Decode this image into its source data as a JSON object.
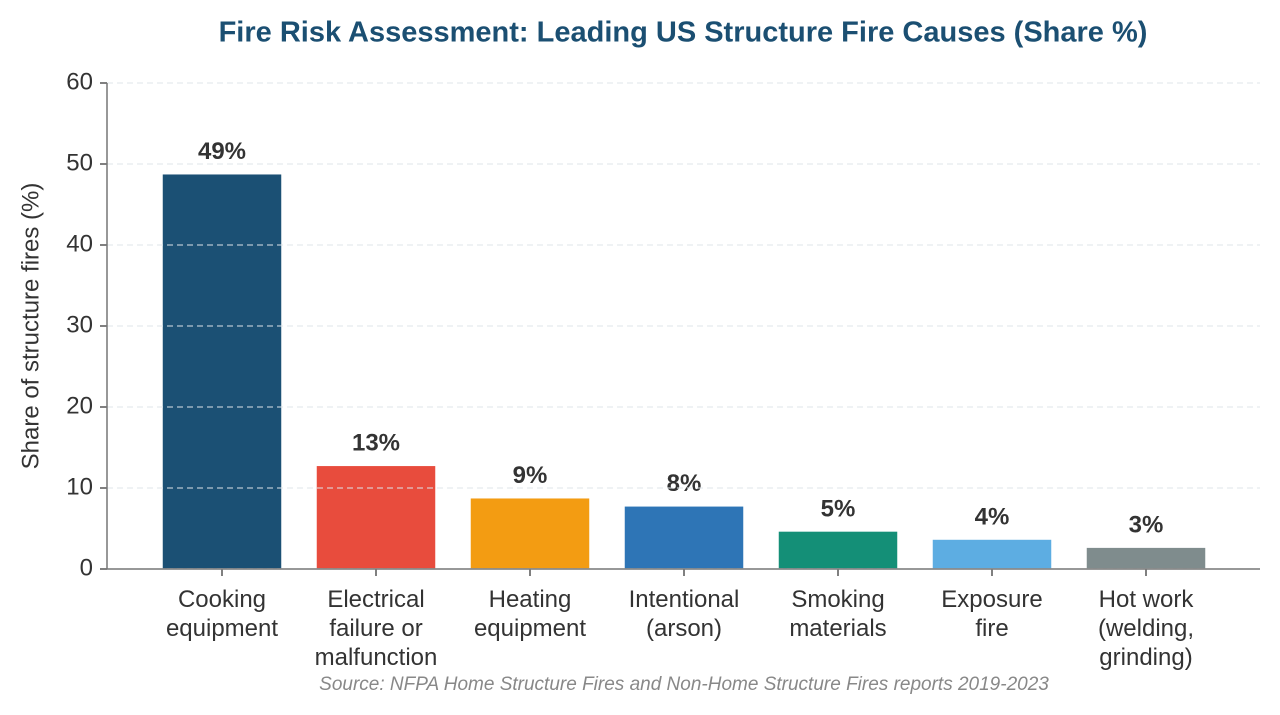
{
  "chart_data": {
    "type": "bar",
    "title": "Fire Risk Assessment: Leading US Structure Fire Causes (Share %)",
    "ylabel": "Share of structure fires (%)",
    "source": "Source: NFPA Home Structure Fires and Non-Home Structure Fires reports 2019-2023",
    "categories": [
      "Cooking\nequipment",
      "Electrical\nfailure or\nmalfunction",
      "Heating\nequipment",
      "Intentional\n(arson)",
      "Smoking\nmaterials",
      "Exposure\nfire",
      "Hot work\n(welding,\ngrinding)"
    ],
    "values": [
      48.8,
      12.8,
      8.8,
      7.8,
      4.7,
      3.7,
      2.7
    ],
    "value_labels": [
      "49%",
      "13%",
      "9%",
      "8%",
      "5%",
      "4%",
      "3%"
    ],
    "colors": [
      "#1b5074",
      "#e84c3d",
      "#f39c12",
      "#2e75b6",
      "#148f77",
      "#5dade2",
      "#7f8c8d"
    ],
    "ylim": [
      0,
      60
    ],
    "yticks": [
      0,
      10,
      20,
      30,
      40,
      50,
      60
    ],
    "grid": true
  }
}
